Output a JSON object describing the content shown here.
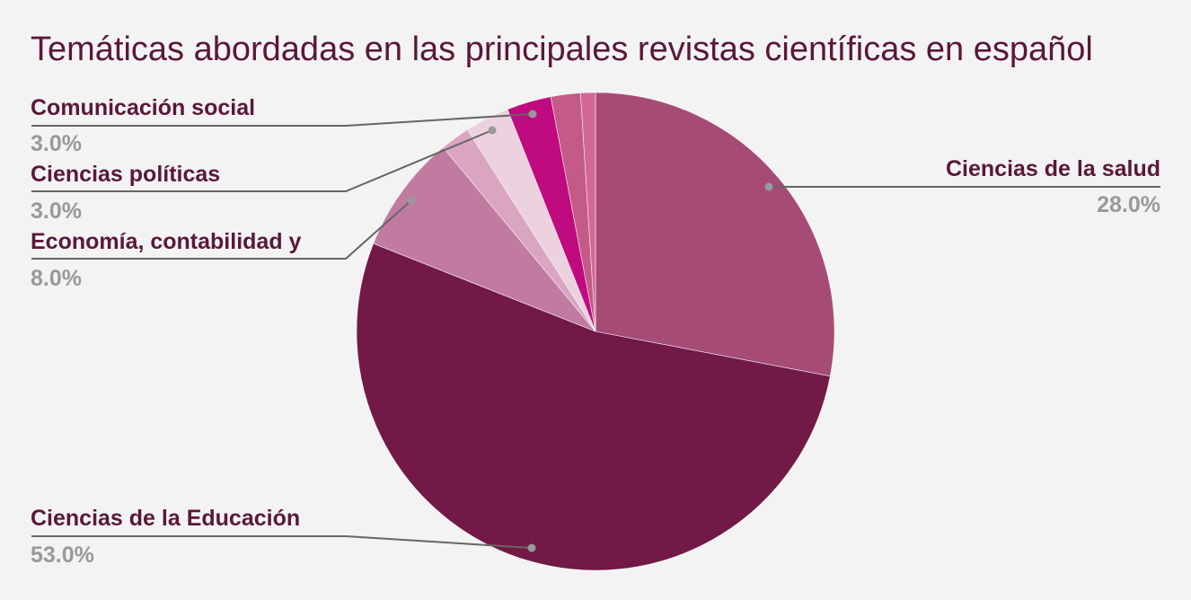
{
  "chart_data": {
    "type": "pie",
    "title": "Temáticas abordadas en las principales revistas científicas en español",
    "slices": [
      {
        "label": "Ciencias de la salud",
        "value": 28.0,
        "display": "28.0%",
        "color": "#a54b76"
      },
      {
        "label": "Ciencias de la Educación",
        "value": 53.0,
        "display": "53.0%",
        "color": "#721947"
      },
      {
        "label": "Economía, contabilidad y",
        "value": 8.0,
        "display": "8.0%",
        "color": "#c27ba0"
      },
      {
        "label": "",
        "value": 2.0,
        "display": "",
        "color": "#d9a5c1"
      },
      {
        "label": "Ciencias políticas",
        "value": 3.0,
        "display": "3.0%",
        "color": "#ecd2de"
      },
      {
        "label": "Comunicación social",
        "value": 3.0,
        "display": "3.0%",
        "color": "#c00a80"
      },
      {
        "label": "",
        "value": 2.0,
        "display": "",
        "color": "#c45a87"
      },
      {
        "label": "",
        "value": 1.0,
        "display": "",
        "color": "#d46895"
      }
    ],
    "start_angle_deg": 0,
    "direction": "clockwise",
    "legend": "none (callout labels)"
  }
}
